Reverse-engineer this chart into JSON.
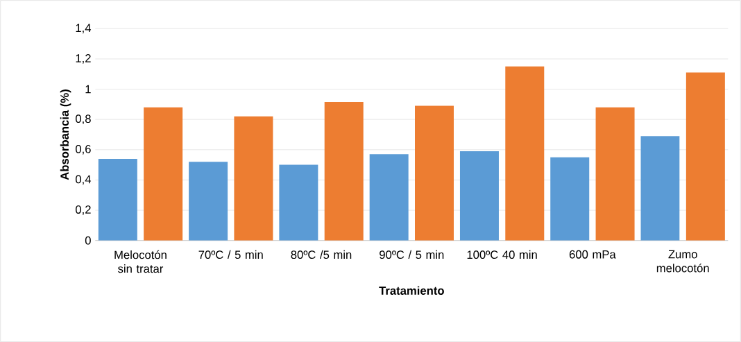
{
  "chart_data": {
    "type": "bar",
    "xlabel": "Tratamiento",
    "ylabel": "Absorbancia (%)",
    "categories": [
      "Melocotón sin tratar",
      "70ºC / 5 min",
      "80ºC /5 min",
      "90ºC / 5 min",
      "100ºC 40 min",
      "600 mPa",
      "Zumo melocotón"
    ],
    "series": [
      {
        "color": "#5b9bd5",
        "values": [
          0.54,
          0.52,
          0.5,
          0.57,
          0.59,
          0.55,
          0.69
        ]
      },
      {
        "color": "#ed7d31",
        "values": [
          0.88,
          0.82,
          0.915,
          0.89,
          1.15,
          0.88,
          1.11
        ]
      }
    ],
    "ylim": [
      0,
      1.4
    ],
    "yticks": [
      {
        "value": 0,
        "label": "0"
      },
      {
        "value": 0.2,
        "label": "0,2"
      },
      {
        "value": 0.4,
        "label": "0,4"
      },
      {
        "value": 0.6,
        "label": "0,6"
      },
      {
        "value": 0.8,
        "label": "0,8"
      },
      {
        "value": 1,
        "label": "1"
      },
      {
        "value": 1.2,
        "label": "1,2"
      },
      {
        "value": 1.4,
        "label": "1,4"
      }
    ],
    "grid": "y"
  }
}
